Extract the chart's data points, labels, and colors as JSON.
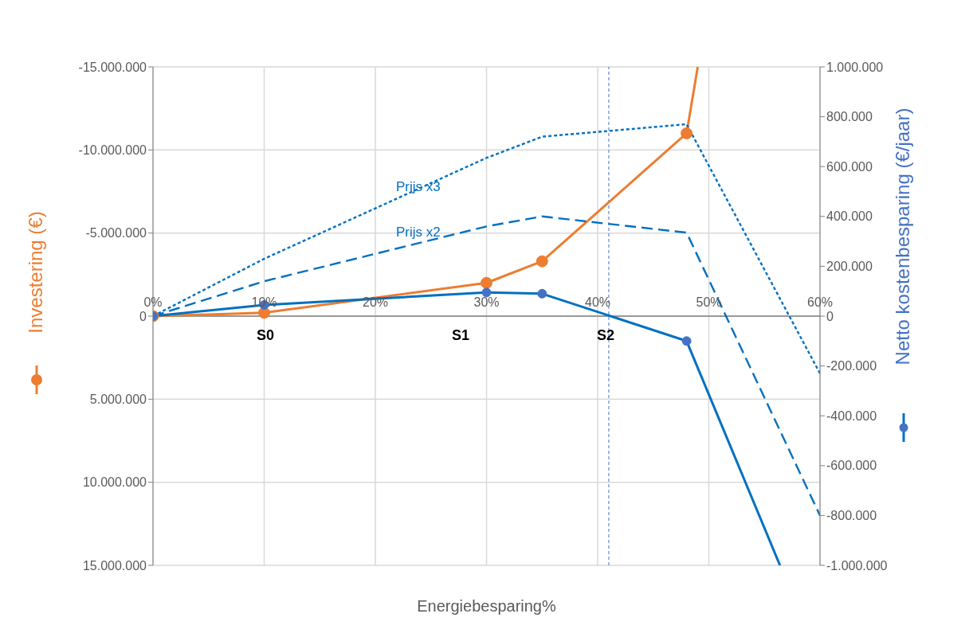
{
  "chart_data": {
    "type": "line",
    "xlabel": "Energiebesparing%",
    "ylabel": "Investering (€)",
    "y2label": "Netto kostenbesparing (€/jaar)",
    "xlim": [
      0,
      60
    ],
    "xticks": [
      {
        "value": 0,
        "label": "0%"
      },
      {
        "value": 10,
        "label": "10%"
      },
      {
        "value": 20,
        "label": "20%"
      },
      {
        "value": 30,
        "label": "30%"
      },
      {
        "value": 40,
        "label": "40%"
      },
      {
        "value": 50,
        "label": "50%"
      },
      {
        "value": 60,
        "label": "60%"
      }
    ],
    "ylim": [
      15000000,
      -15000000
    ],
    "yticks": [
      {
        "value": -15000000,
        "label": "-15.000.000"
      },
      {
        "value": -10000000,
        "label": "-10.000.000"
      },
      {
        "value": -5000000,
        "label": "-5.000.000"
      },
      0,
      {
        "value": 5000000,
        "label": "5.000.000"
      },
      {
        "value": 10000000,
        "label": "10.000.000"
      },
      {
        "value": 15000000,
        "label": "15.000.000"
      }
    ],
    "y2lim": [
      -1000000,
      1000000
    ],
    "y2ticks": [
      {
        "value": 1000000,
        "label": "1.000.000"
      },
      {
        "value": 800000,
        "label": "800.000"
      },
      {
        "value": 600000,
        "label": "600.000"
      },
      {
        "value": 400000,
        "label": "400.000"
      },
      {
        "value": 200000,
        "label": "200.000"
      },
      0,
      {
        "value": -200000,
        "label": "-200.000"
      },
      {
        "value": -400000,
        "label": "-400.000"
      },
      {
        "value": -600000,
        "label": "-600.000"
      },
      {
        "value": -800000,
        "label": "-800.000"
      },
      {
        "value": -1000000,
        "label": "-1.000.000"
      }
    ],
    "grid": true,
    "series": [
      {
        "color": "#ed7d31",
        "x": [
          0,
          10,
          30,
          35,
          48
        ],
        "values": [
          0,
          -200000,
          -2000000,
          -3300000,
          -11000000
        ],
        "marker": "circle",
        "line_style": "solid"
      },
      {
        "color": "#ed7d31",
        "x": [
          48,
          49
        ],
        "values": [
          -11000000,
          -15000000
        ],
        "marker": "none",
        "line_style": "solid"
      },
      {
        "color": "#0070c0",
        "axis": "y2",
        "x": [
          0,
          10,
          30,
          35,
          48
        ],
        "values": [
          0,
          45000,
          95000,
          90000,
          -100000
        ],
        "marker": "circle",
        "line_style": "solid"
      },
      {
        "color": "#0070c0",
        "axis": "y2",
        "x": [
          48,
          56.4
        ],
        "values": [
          -100000,
          -1000000
        ],
        "marker": "none",
        "line_style": "solid"
      },
      {
        "name": "Prijs x2",
        "color": "#0070c0",
        "axis": "y2",
        "x": [
          0,
          10,
          30,
          35,
          48,
          60
        ],
        "values": [
          0,
          140000,
          360000,
          400000,
          335000,
          -800000
        ],
        "marker": "none",
        "line_style": "dashed"
      },
      {
        "name": "Prijs x3",
        "color": "#0070c0",
        "axis": "y2",
        "x": [
          0,
          10,
          30,
          35,
          48,
          60
        ],
        "values": [
          0,
          230000,
          635000,
          720000,
          770000,
          -230000
        ],
        "marker": "none",
        "line_style": "dotted"
      }
    ],
    "ref_lines": [
      {
        "axis": "x",
        "value": 41,
        "label": "S2",
        "color": "#4472c4",
        "line_style": "dotted"
      }
    ],
    "annotations": [
      "S0",
      "S1"
    ]
  }
}
